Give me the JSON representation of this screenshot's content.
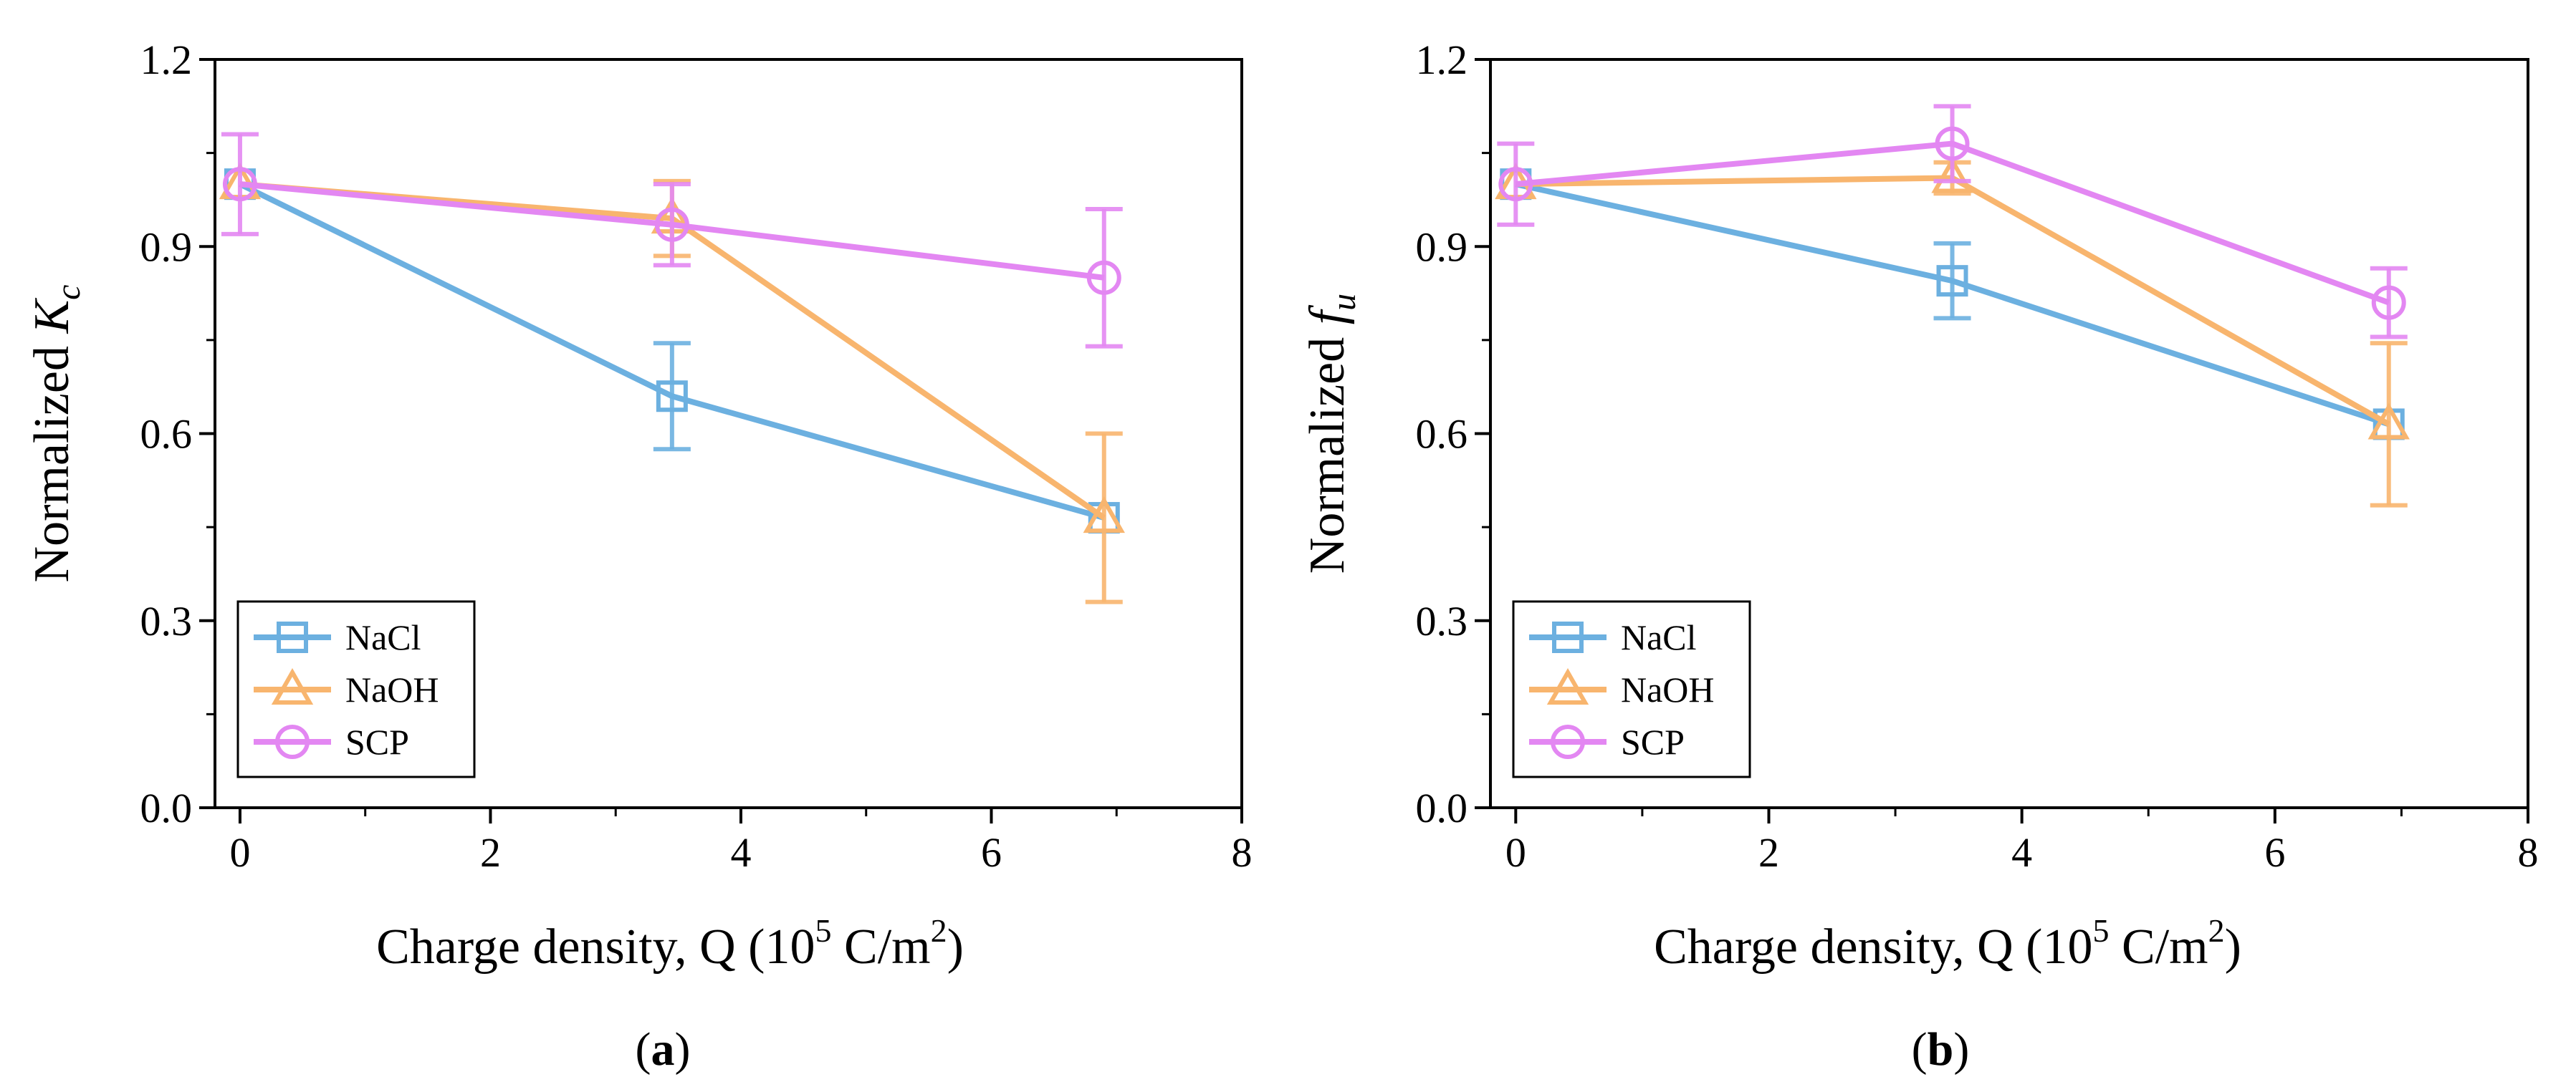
{
  "colors": {
    "NaCl": "#6cb0e0",
    "NaOH": "#f8b56e",
    "SCP": "#e387f2",
    "axis": "#000000"
  },
  "chart_data": [
    {
      "type": "line",
      "panel_label": "a",
      "ylabel_text": "Normalized ",
      "ylabel_symbol": "K",
      "ylabel_sub": "c",
      "xlabel_text": "Charge density, Q (10",
      "xlabel_sup1": "5",
      "xlabel_mid": " C/m",
      "xlabel_sup2": "2",
      "xlabel_end": ")",
      "xlim": [
        -0.2,
        8
      ],
      "ylim": [
        0,
        1.2
      ],
      "xticks": [
        "0",
        "2",
        "4",
        "6",
        "8"
      ],
      "yticks": [
        "0.0",
        "0.3",
        "0.6",
        "0.9",
        "1.2"
      ],
      "legend_position": "bottom-left",
      "series": [
        {
          "name": "NaCl",
          "marker": "square",
          "x": [
            0,
            3.45,
            6.9
          ],
          "y": [
            1.0,
            0.66,
            0.465
          ],
          "err": [
            0.0,
            0.085,
            0.0
          ]
        },
        {
          "name": "NaOH",
          "marker": "triangle",
          "x": [
            0,
            3.45,
            6.9
          ],
          "y": [
            1.0,
            0.945,
            0.465
          ],
          "err": [
            0.0,
            0.06,
            0.135
          ]
        },
        {
          "name": "SCP",
          "marker": "circle",
          "x": [
            0,
            3.45,
            6.9
          ],
          "y": [
            1.0,
            0.935,
            0.85
          ],
          "err": [
            0.08,
            0.065,
            0.11
          ]
        }
      ]
    },
    {
      "type": "line",
      "panel_label": "b",
      "ylabel_text": "Normalized ",
      "ylabel_symbol": "f",
      "ylabel_sub": "u",
      "xlabel_text": "Charge density, Q (10",
      "xlabel_sup1": "5",
      "xlabel_mid": " C/m",
      "xlabel_sup2": "2",
      "xlabel_end": ")",
      "xlim": [
        -0.2,
        8
      ],
      "ylim": [
        0,
        1.2
      ],
      "xticks": [
        "0",
        "2",
        "4",
        "6",
        "8"
      ],
      "yticks": [
        "0.0",
        "0.3",
        "0.6",
        "0.9",
        "1.2"
      ],
      "legend_position": "bottom-left",
      "series": [
        {
          "name": "NaCl",
          "marker": "square",
          "x": [
            0,
            3.45,
            6.9
          ],
          "y": [
            1.0,
            0.845,
            0.615
          ],
          "err": [
            0.0,
            0.06,
            0.0
          ]
        },
        {
          "name": "NaOH",
          "marker": "triangle",
          "x": [
            0,
            3.45,
            6.9
          ],
          "y": [
            1.0,
            1.01,
            0.615
          ],
          "err": [
            0.0,
            0.025,
            0.13
          ]
        },
        {
          "name": "SCP",
          "marker": "circle",
          "x": [
            0,
            3.45,
            6.9
          ],
          "y": [
            1.0,
            1.065,
            0.81
          ],
          "err": [
            0.065,
            0.06,
            0.055
          ]
        }
      ]
    }
  ]
}
